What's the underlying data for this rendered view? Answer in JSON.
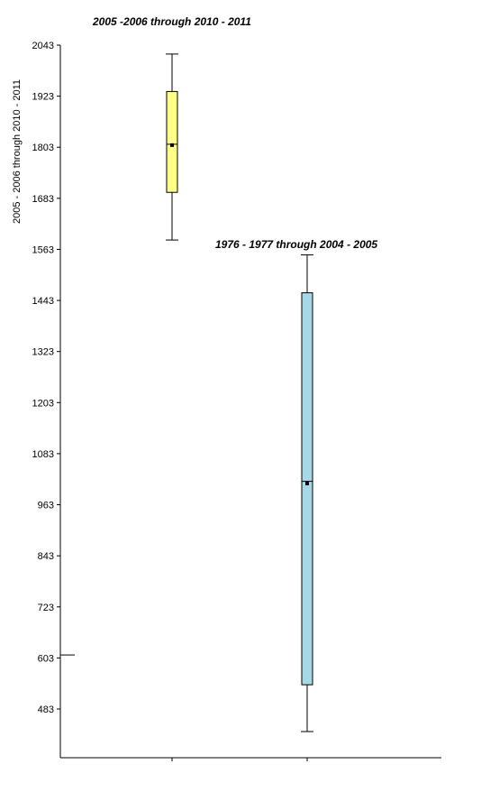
{
  "chart_data": {
    "type": "box",
    "ylabel": "2005 - 2006 through 2010 - 2011",
    "yticks": [
      483,
      603,
      723,
      843,
      963,
      1083,
      1203,
      1323,
      1443,
      1563,
      1683,
      1803,
      1923,
      2043
    ],
    "ylim": [
      395,
      2043
    ],
    "series": [
      {
        "name": "2005 -2006 through 2010 - 2011",
        "color": "#ffff88",
        "min": 1585,
        "q1": 1697,
        "median": 1810,
        "mean": 1808,
        "q3": 1934,
        "max": 2022
      },
      {
        "name": "1976 - 1977 through 2004 - 2005",
        "color": "#a6d8e8",
        "min": 430,
        "q1": 540,
        "median": 1018,
        "mean": 1013,
        "q3": 1461,
        "max": 1550
      }
    ],
    "reference_marker": 610,
    "grid": false,
    "legend": "none"
  }
}
